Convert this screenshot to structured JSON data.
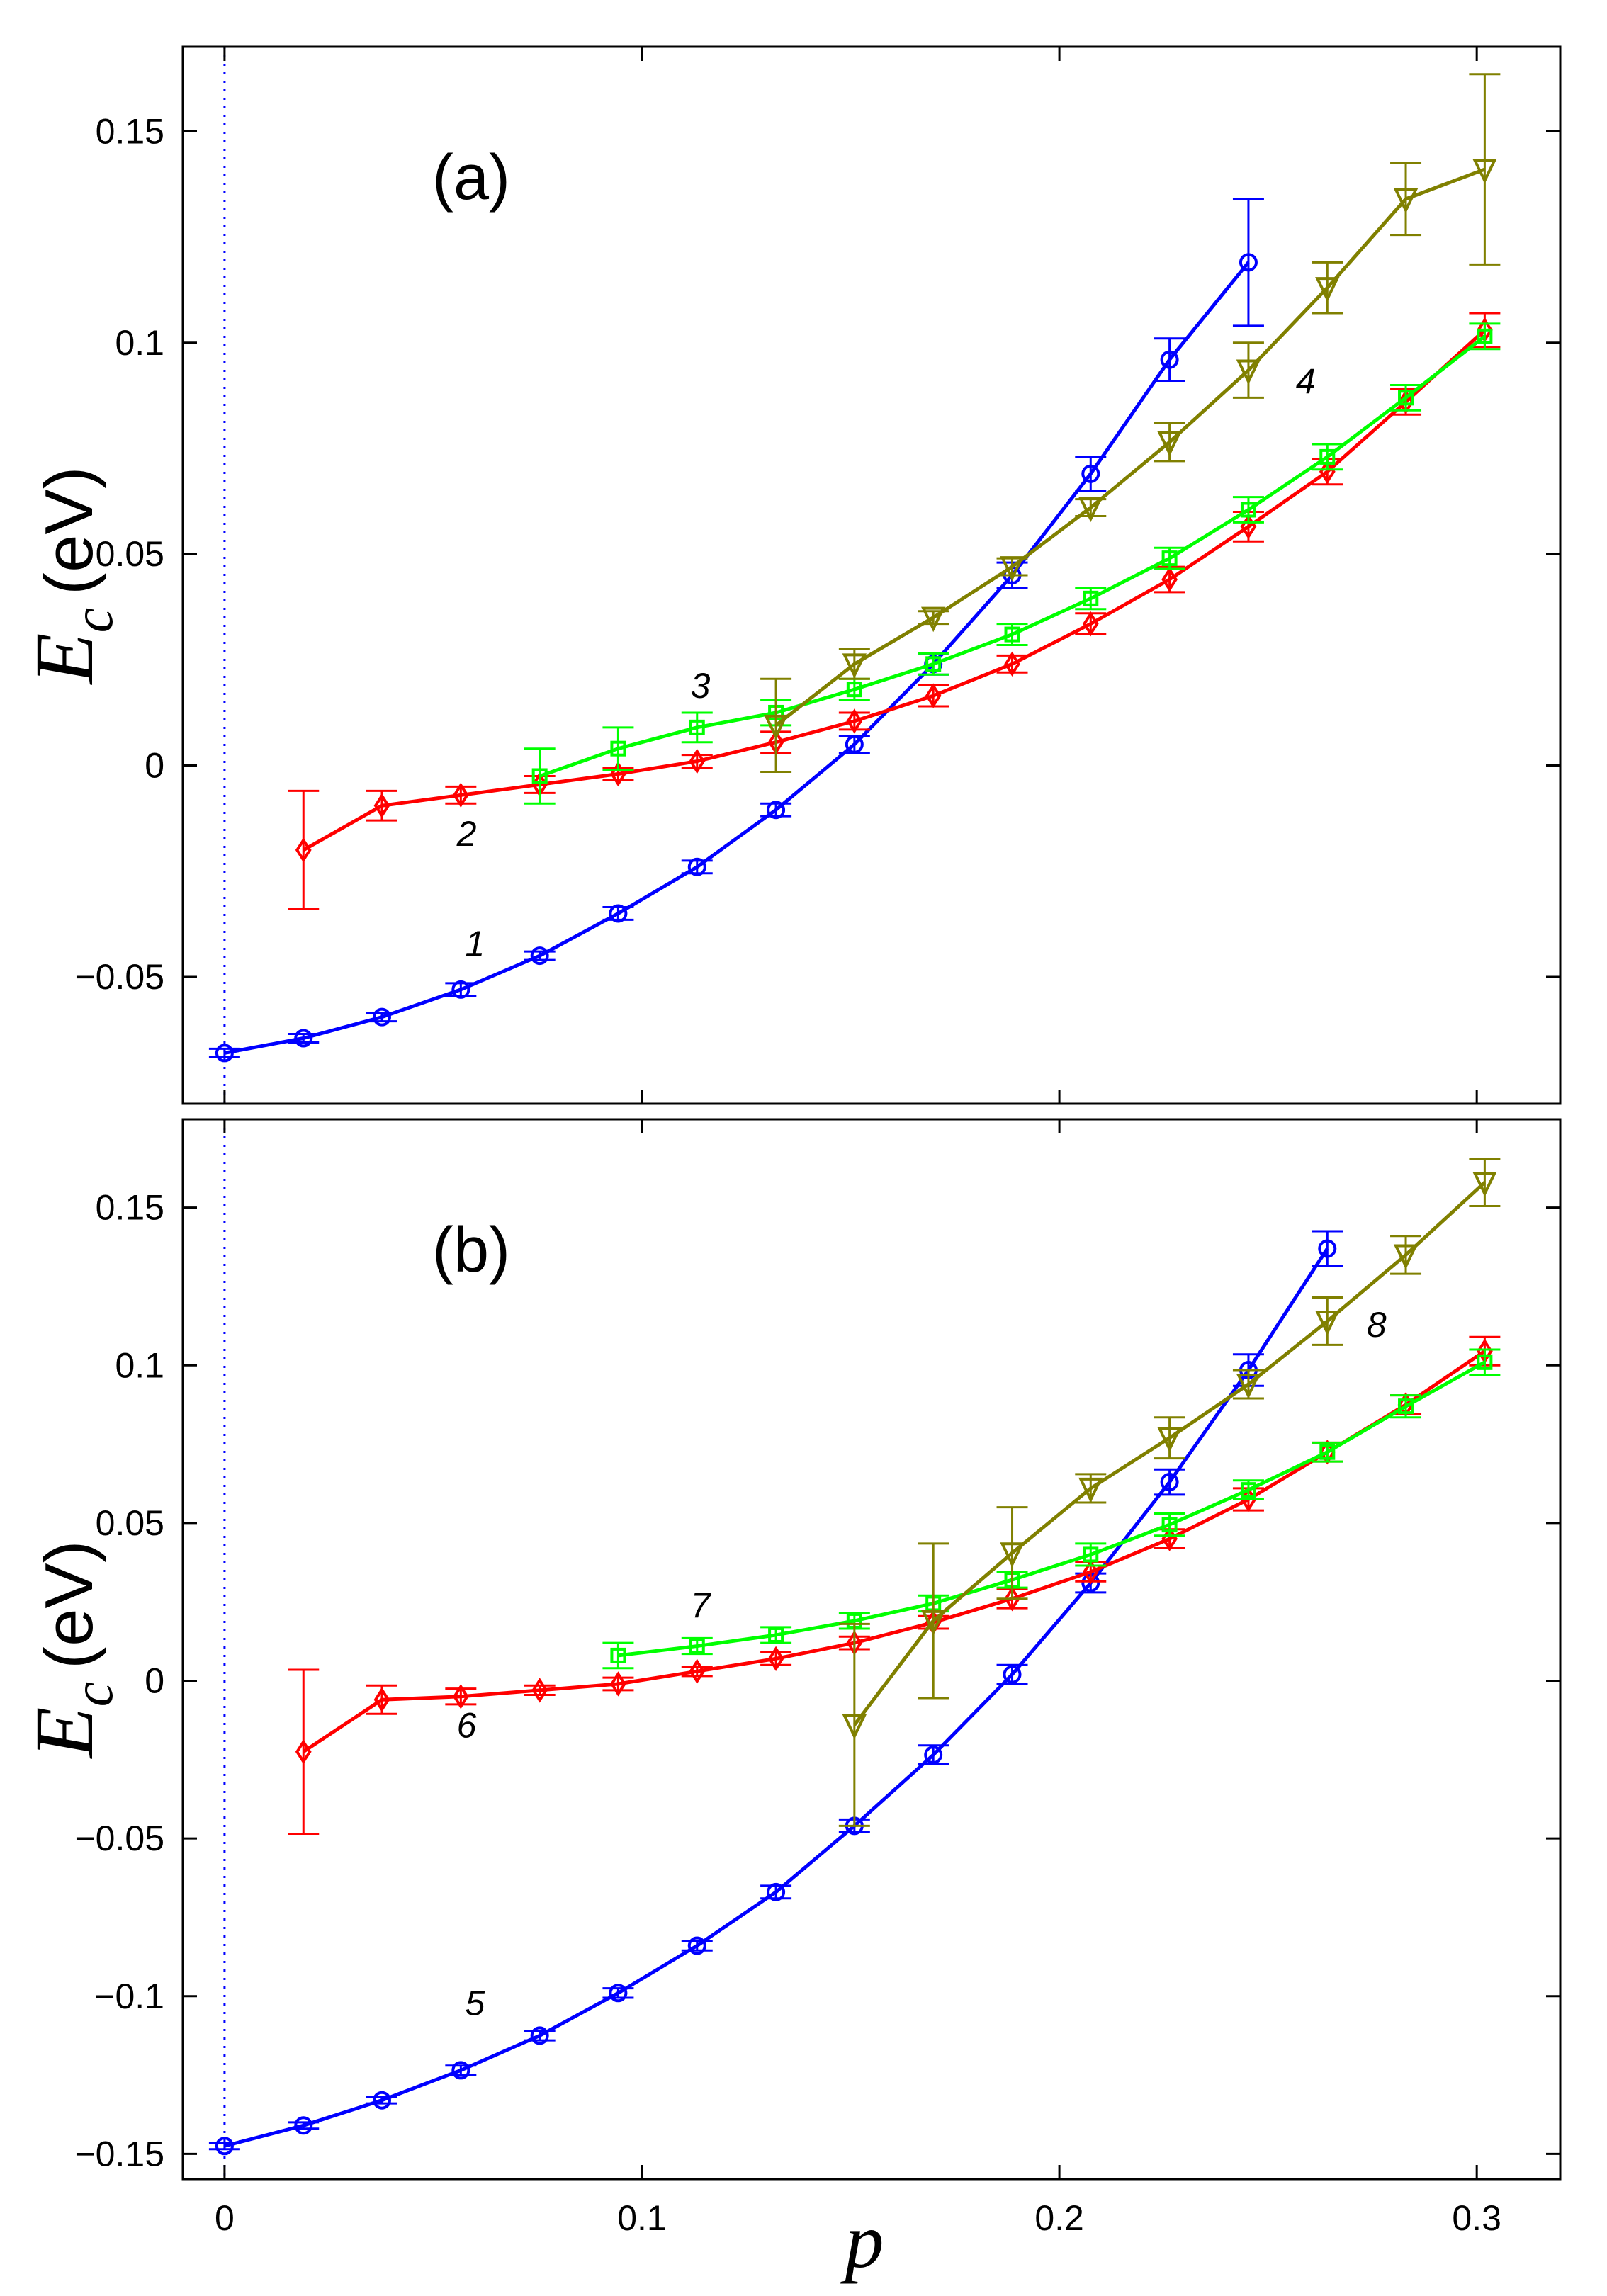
{
  "chart_data": [
    {
      "type": "line",
      "panel_label": "(a)",
      "xlabel": "p",
      "ylabel_symbol": "E",
      "ylabel_subscript": "c",
      "ylabel_unit": "(eV)",
      "xlim": [
        -0.01,
        0.32
      ],
      "ylim": [
        -0.08,
        0.17
      ],
      "xticks": [
        0,
        0.1,
        0.2,
        0.3
      ],
      "xtick_labels": [
        "0",
        "0.1",
        "0.2",
        "0.3"
      ],
      "yticks": [
        -0.05,
        0,
        0.05,
        0.1,
        0.15
      ],
      "ytick_labels": [
        "−0.05",
        "0",
        "0.05",
        "0.1",
        "0.15"
      ],
      "reference_line_x": 0,
      "series": [
        {
          "name": "1",
          "label": "1",
          "color": "#0000ff",
          "marker": "circle",
          "x": [
            0,
            0.0189,
            0.0377,
            0.0566,
            0.0755,
            0.0943,
            0.1132,
            0.1321,
            0.1509,
            0.1698,
            0.1887,
            0.2075,
            0.2264,
            0.2453
          ],
          "y": [
            -0.068,
            -0.0645,
            -0.0595,
            -0.053,
            -0.045,
            -0.035,
            -0.024,
            -0.0105,
            0.005,
            0.024,
            0.045,
            0.069,
            0.096,
            0.119
          ],
          "err": [
            0.001,
            0.001,
            0.001,
            0.0015,
            0.001,
            0.0015,
            0.0015,
            0.0015,
            0.002,
            0.0025,
            0.003,
            0.004,
            0.005,
            0.015
          ],
          "label_at": [
            0.06,
            -0.045
          ]
        },
        {
          "name": "2",
          "label": "2",
          "color": "#ff0000",
          "marker": "diamond",
          "x": [
            0.0189,
            0.0377,
            0.0566,
            0.0755,
            0.0943,
            0.1132,
            0.1321,
            0.1509,
            0.1698,
            0.1887,
            0.2075,
            0.2264,
            0.2453,
            0.2642,
            0.283,
            0.3019
          ],
          "y": [
            -0.02,
            -0.0095,
            -0.007,
            -0.0045,
            -0.002,
            0.001,
            0.0055,
            0.0105,
            0.0165,
            0.024,
            0.0335,
            0.044,
            0.0565,
            0.0695,
            0.086,
            0.103
          ],
          "err": [
            0.014,
            0.0035,
            0.002,
            0.002,
            0.0015,
            0.0015,
            0.0025,
            0.002,
            0.0025,
            0.002,
            0.0025,
            0.003,
            0.0035,
            0.003,
            0.003,
            0.004
          ],
          "label_at": [
            0.058,
            -0.019
          ]
        },
        {
          "name": "3",
          "label": "3",
          "color": "#00ff00",
          "marker": "square",
          "x": [
            0.0755,
            0.0943,
            0.1132,
            0.1321,
            0.1509,
            0.1698,
            0.1887,
            0.2075,
            0.2264,
            0.2453,
            0.2642,
            0.283,
            0.3019
          ],
          "y": [
            -0.0025,
            0.004,
            0.009,
            0.0125,
            0.018,
            0.024,
            0.031,
            0.0395,
            0.049,
            0.0605,
            0.073,
            0.087,
            0.1015
          ],
          "err": [
            0.0065,
            0.005,
            0.0035,
            0.003,
            0.0025,
            0.0025,
            0.0025,
            0.0025,
            0.0025,
            0.003,
            0.003,
            0.003,
            0.003
          ],
          "label_at": [
            0.114,
            0.016
          ]
        },
        {
          "name": "4",
          "label": "4",
          "color": "#808000",
          "marker": "triangle-down",
          "x": [
            0.1321,
            0.1509,
            0.1698,
            0.1887,
            0.2075,
            0.2264,
            0.2453,
            0.2642,
            0.283,
            0.3019
          ],
          "y": [
            0.0095,
            0.024,
            0.035,
            0.047,
            0.061,
            0.0765,
            0.0935,
            0.113,
            0.134,
            0.141
          ],
          "err": [
            0.011,
            0.0035,
            0.0015,
            0.002,
            0.002,
            0.0045,
            0.0065,
            0.006,
            0.0085,
            0.0225
          ],
          "label_at": [
            0.259,
            0.088
          ]
        }
      ]
    },
    {
      "type": "line",
      "panel_label": "(b)",
      "xlabel": "p",
      "ylabel_symbol": "E",
      "ylabel_subscript": "c",
      "ylabel_unit": "(eV)",
      "xlim": [
        -0.01,
        0.32
      ],
      "ylim": [
        -0.158,
        0.178
      ],
      "xticks": [
        0,
        0.1,
        0.2,
        0.3
      ],
      "xtick_labels": [
        "0",
        "0.1",
        "0.2",
        "0.3"
      ],
      "yticks": [
        -0.15,
        -0.1,
        -0.05,
        0,
        0.05,
        0.1,
        0.15
      ],
      "ytick_labels": [
        "−0.15",
        "−0.1",
        "−0.05",
        "0",
        "0.05",
        "0.1",
        "0.15"
      ],
      "reference_line_x": 0,
      "series": [
        {
          "name": "5",
          "label": "5",
          "color": "#0000ff",
          "marker": "circle",
          "x": [
            0,
            0.0189,
            0.0377,
            0.0566,
            0.0755,
            0.0943,
            0.1132,
            0.1321,
            0.1509,
            0.1698,
            0.1887,
            0.2075,
            0.2264,
            0.2453,
            0.2642
          ],
          "y": [
            -0.1475,
            -0.141,
            -0.133,
            -0.1235,
            -0.1125,
            -0.099,
            -0.084,
            -0.067,
            -0.046,
            -0.0235,
            0.002,
            0.031,
            0.063,
            0.0985,
            0.137
          ],
          "err": [
            0.001,
            0.001,
            0.001,
            0.0015,
            0.0015,
            0.0015,
            0.0015,
            0.002,
            0.002,
            0.003,
            0.003,
            0.003,
            0.004,
            0.005,
            0.0055
          ],
          "label_at": [
            0.06,
            -0.106
          ]
        },
        {
          "name": "6",
          "label": "6",
          "color": "#ff0000",
          "marker": "diamond",
          "x": [
            0.0189,
            0.0377,
            0.0566,
            0.0755,
            0.0943,
            0.1132,
            0.1321,
            0.1509,
            0.1698,
            0.1887,
            0.2075,
            0.2264,
            0.2453,
            0.2642,
            0.283,
            0.3019
          ],
          "y": [
            -0.0225,
            -0.006,
            -0.005,
            -0.003,
            -0.001,
            0.003,
            0.007,
            0.012,
            0.0185,
            0.026,
            0.0345,
            0.045,
            0.0575,
            0.0725,
            0.0875,
            0.1045
          ],
          "err": [
            0.026,
            0.0045,
            0.0025,
            0.0015,
            0.002,
            0.0015,
            0.002,
            0.002,
            0.002,
            0.003,
            0.003,
            0.003,
            0.0035,
            0.003,
            0.003,
            0.0045
          ],
          "label_at": [
            0.058,
            -0.018
          ]
        },
        {
          "name": "7",
          "label": "7",
          "color": "#00ff00",
          "marker": "square",
          "x": [
            0.0943,
            0.1132,
            0.1321,
            0.1509,
            0.1698,
            0.1887,
            0.2075,
            0.2264,
            0.2453,
            0.2642,
            0.283,
            0.3019
          ],
          "y": [
            0.008,
            0.011,
            0.0145,
            0.019,
            0.0245,
            0.032,
            0.04,
            0.0495,
            0.0605,
            0.0725,
            0.087,
            0.101
          ],
          "err": [
            0.004,
            0.0025,
            0.0025,
            0.0025,
            0.0025,
            0.0025,
            0.0035,
            0.0035,
            0.003,
            0.003,
            0.0035,
            0.004
          ],
          "label_at": [
            0.114,
            0.02
          ]
        },
        {
          "name": "8",
          "label": "8",
          "color": "#808000",
          "marker": "triangle-down",
          "x": [
            0.1509,
            0.1698,
            0.1887,
            0.2075,
            0.2264,
            0.2453,
            0.2642,
            0.283,
            0.3019
          ],
          "y": [
            -0.014,
            0.019,
            0.0405,
            0.061,
            0.077,
            0.094,
            0.114,
            0.135,
            0.158
          ],
          "err": [
            0.032,
            0.0245,
            0.0145,
            0.0045,
            0.0065,
            0.0045,
            0.0075,
            0.006,
            0.0075
          ],
          "label_at": [
            0.276,
            0.109
          ]
        }
      ]
    }
  ]
}
